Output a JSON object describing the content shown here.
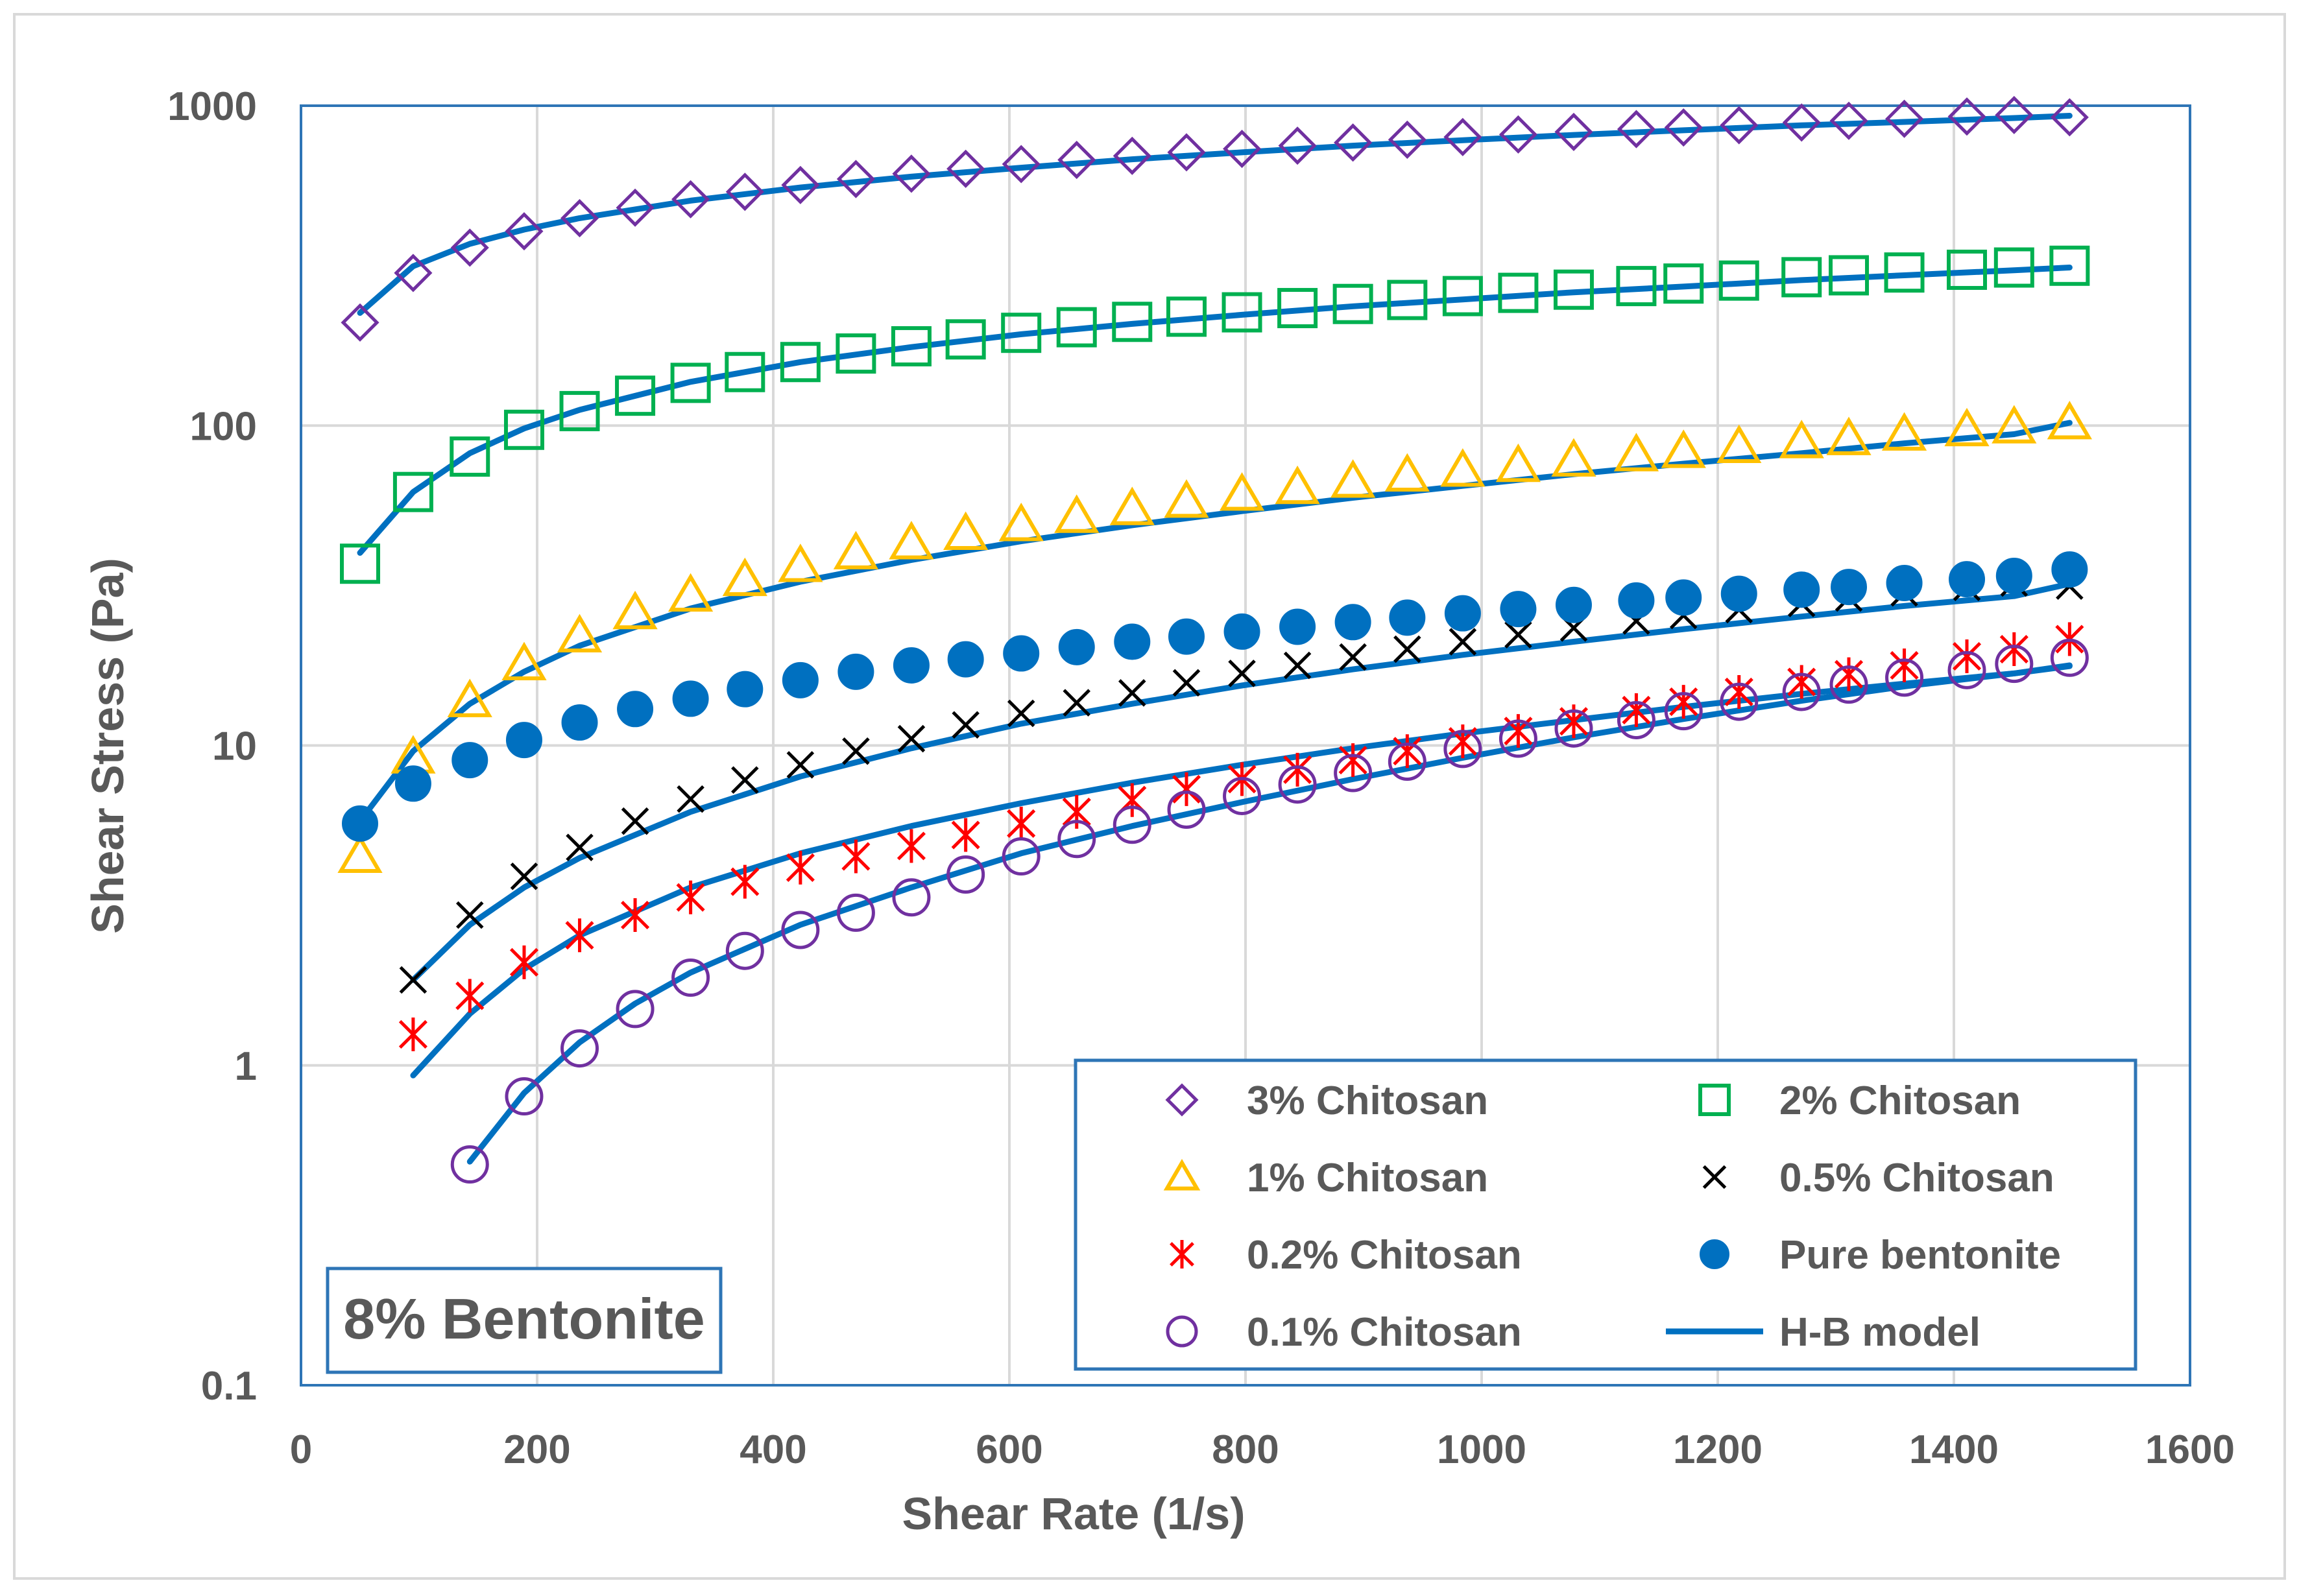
{
  "chart_data": {
    "type": "scatter",
    "xlabel": "Shear Rate (1/s)",
    "ylabel": "Shear Stress (Pa)",
    "xlim": [
      0,
      1600
    ],
    "ylim": [
      0.1,
      1000
    ],
    "yscale": "log",
    "x_ticks": [
      0,
      200,
      400,
      600,
      800,
      1000,
      1200,
      1400,
      1600
    ],
    "y_ticks": [
      0.1,
      1,
      10,
      100,
      1000
    ],
    "x_tick_labels": [
      "0",
      "200",
      "400",
      "600",
      "800",
      "1000",
      "1200",
      "1400",
      "1600"
    ],
    "y_tick_labels": [
      "0.1",
      "1",
      "10",
      "100",
      "1000"
    ],
    "grid": true,
    "legend_position": "bottom-right",
    "annotation": "8% Bentonite",
    "colors": {
      "purple": "#7030A0",
      "green": "#00B050",
      "yellow": "#FFC000",
      "black": "#000000",
      "red": "#FF0000",
      "blue": "#0070C0",
      "axis_text": "#595959",
      "grid": "#D9D9D9",
      "frame": "#2E75B6"
    },
    "series": [
      {
        "name": "3% Chitosan",
        "marker": "diamond-open",
        "color": "#7030A0",
        "x": [
          50,
          95,
          143,
          189,
          236,
          283,
          330,
          376,
          423,
          470,
          517,
          563,
          610,
          657,
          704,
          750,
          797,
          844,
          891,
          937,
          984,
          1031,
          1078,
          1131,
          1171,
          1218,
          1271,
          1311,
          1358,
          1411,
          1451,
          1498
        ],
        "y": [
          210,
          300,
          360,
          405,
          445,
          480,
          510,
          538,
          565,
          590,
          613,
          635,
          657,
          677,
          697,
          715,
          733,
          750,
          767,
          783,
          798,
          813,
          828,
          845,
          855,
          869,
          886,
          897,
          910,
          925,
          935,
          920
        ]
      },
      {
        "name": "2% Chitosan",
        "marker": "square-open",
        "color": "#00B050",
        "x": [
          50,
          95,
          143,
          189,
          236,
          283,
          330,
          376,
          423,
          470,
          517,
          563,
          610,
          657,
          704,
          750,
          797,
          844,
          891,
          937,
          984,
          1031,
          1078,
          1131,
          1171,
          1218,
          1271,
          1311,
          1358,
          1411,
          1451,
          1498
        ],
        "y": [
          37,
          62,
          80,
          97,
          111,
          124,
          136,
          147,
          158,
          168,
          177,
          186,
          195,
          203,
          211,
          219,
          226,
          233,
          240,
          247,
          254,
          260,
          266,
          273,
          278,
          284,
          291,
          295,
          301,
          307,
          312,
          316
        ]
      },
      {
        "name": "1% Chitosan",
        "marker": "triangle-open",
        "color": "#FFC000",
        "x": [
          50,
          95,
          143,
          189,
          236,
          283,
          330,
          376,
          423,
          470,
          517,
          563,
          610,
          657,
          704,
          750,
          797,
          844,
          891,
          937,
          984,
          1031,
          1078,
          1131,
          1171,
          1218,
          1271,
          1311,
          1358,
          1411,
          1451,
          1498
        ],
        "y": [
          4.5,
          9.2,
          13.8,
          18,
          22,
          26,
          29.5,
          33,
          36.5,
          40,
          43,
          46,
          49,
          52,
          55,
          58,
          61,
          64,
          67,
          70,
          72.5,
          75,
          78,
          81,
          83,
          86,
          89,
          91,
          94,
          97,
          99,
          102
        ]
      },
      {
        "name": "0.5% Chitosan",
        "marker": "x",
        "color": "#000000",
        "x": [
          95,
          143,
          189,
          236,
          283,
          330,
          376,
          423,
          470,
          517,
          563,
          610,
          657,
          704,
          750,
          797,
          844,
          891,
          937,
          984,
          1031,
          1078,
          1131,
          1171,
          1218,
          1271,
          1311,
          1358,
          1411,
          1451,
          1498
        ],
        "y": [
          1.85,
          2.95,
          3.9,
          4.8,
          5.8,
          6.8,
          7.8,
          8.7,
          9.6,
          10.5,
          11.6,
          12.6,
          13.6,
          14.6,
          15.7,
          16.8,
          17.8,
          18.9,
          20,
          21.1,
          22.2,
          23.3,
          24.5,
          25.5,
          26.6,
          27.8,
          28.9,
          30,
          31.2,
          32.2,
          31.5
        ]
      },
      {
        "name": "Pure bentonite",
        "marker": "circle-filled",
        "color": "#0070C0",
        "x": [
          50,
          95,
          143,
          189,
          236,
          283,
          330,
          376,
          423,
          470,
          517,
          563,
          610,
          657,
          704,
          750,
          797,
          844,
          891,
          937,
          984,
          1031,
          1078,
          1131,
          1171,
          1218,
          1271,
          1311,
          1358,
          1411,
          1451,
          1498
        ],
        "y": [
          5.7,
          7.6,
          9.0,
          10.4,
          11.8,
          13.0,
          14.0,
          15.0,
          16.0,
          17.0,
          17.8,
          18.6,
          19.4,
          20.3,
          21.1,
          21.9,
          22.7,
          23.5,
          24.3,
          25.1,
          25.9,
          26.7,
          27.5,
          28.4,
          29.0,
          29.8,
          30.7,
          31.3,
          32.2,
          33.1,
          33.9,
          35.5
        ]
      },
      {
        "name": "0.2% Chitosan",
        "marker": "asterisk",
        "color": "#FF0000",
        "x": [
          95,
          143,
          189,
          236,
          283,
          330,
          376,
          423,
          470,
          517,
          563,
          610,
          657,
          704,
          750,
          797,
          844,
          891,
          937,
          984,
          1031,
          1078,
          1131,
          1171,
          1218,
          1271,
          1311,
          1358,
          1411,
          1451,
          1498
        ],
        "y": [
          1.25,
          1.65,
          2.1,
          2.55,
          2.95,
          3.35,
          3.75,
          4.15,
          4.5,
          4.85,
          5.25,
          5.7,
          6.2,
          6.75,
          7.3,
          7.85,
          8.4,
          9.0,
          9.6,
          10.3,
          11.1,
          11.9,
          12.9,
          13.7,
          14.7,
          15.8,
          16.7,
          17.8,
          19.0,
          20.0,
          21.5
        ]
      },
      {
        "name": "0.1% Chitosan",
        "marker": "circle-open",
        "color": "#7030A0",
        "x": [
          143,
          189,
          236,
          283,
          330,
          376,
          423,
          470,
          517,
          563,
          610,
          657,
          704,
          750,
          797,
          844,
          891,
          937,
          984,
          1031,
          1078,
          1131,
          1171,
          1218,
          1271,
          1311,
          1358,
          1411,
          1451,
          1498
        ],
        "y": [
          0.49,
          0.8,
          1.13,
          1.5,
          1.88,
          2.28,
          2.65,
          3.0,
          3.35,
          3.95,
          4.5,
          5.1,
          5.65,
          6.3,
          6.95,
          7.55,
          8.2,
          8.9,
          9.75,
          10.5,
          11.3,
          12.0,
          12.8,
          13.7,
          14.7,
          15.5,
          16.3,
          17.2,
          18.0,
          18.8
        ]
      },
      {
        "name": "H-B model",
        "marker": "line",
        "color": "#0070C0",
        "curves": [
          {
            "x": [
              50,
              95,
              143,
              189,
              236,
              330,
              423,
              517,
              610,
              704,
              797,
              891,
              984,
              1078,
              1171,
              1271,
              1358,
              1451,
              1498
            ],
            "y": [
              225,
              315,
              370,
              410,
              445,
              505,
              555,
              600,
              640,
              680,
              715,
              750,
              780,
              810,
              838,
              868,
              890,
              915,
              930
            ]
          },
          {
            "x": [
              50,
              95,
              143,
              189,
              236,
              330,
              423,
              517,
              610,
              704,
              797,
              891,
              984,
              1078,
              1171,
              1271,
              1358,
              1451,
              1498
            ],
            "y": [
              40,
              62,
              82,
              98,
              112,
              137,
              158,
              176,
              193,
              208,
              222,
              236,
              248,
              261,
              272,
              285,
              295,
              306,
              312
            ]
          },
          {
            "x": [
              50,
              95,
              143,
              189,
              236,
              330,
              423,
              517,
              610,
              704,
              797,
              891,
              984,
              1078,
              1171,
              1271,
              1358,
              1451,
              1498
            ],
            "y": [
              5.8,
              9.6,
              13.5,
              17.0,
              20.5,
              26.8,
              32.5,
              38,
              43.5,
              48.8,
              54,
              59.5,
              64.8,
              70.5,
              76,
              82,
              88,
              94,
              102
            ]
          },
          {
            "x": [
              95,
              143,
              189,
              236,
              330,
              423,
              517,
              610,
              704,
              797,
              891,
              984,
              1078,
              1171,
              1271,
              1358,
              1451,
              1498
            ],
            "y": [
              1.85,
              2.75,
              3.6,
              4.45,
              6.2,
              8.0,
              9.8,
              11.7,
              13.5,
              15.4,
              17.3,
              19.2,
              21.1,
              23.1,
              25.3,
              27.3,
              29.3,
              32
            ]
          },
          {
            "x": [
              95,
              143,
              189,
              236,
              330,
              423,
              517,
              610,
              704,
              797,
              891,
              984,
              1078,
              1171,
              1271,
              1358,
              1451,
              1498
            ],
            "y": [
              0.93,
              1.45,
              2.0,
              2.55,
              3.6,
              4.6,
              5.6,
              6.6,
              7.65,
              8.7,
              9.8,
              10.9,
              12.0,
              13.2,
              14.5,
              15.6,
              16.8,
              17.7
            ]
          },
          {
            "x": [
              143,
              189,
              236,
              283,
              330,
              423,
              517,
              610,
              704,
              797,
              891,
              984,
              1078,
              1171,
              1271,
              1358,
              1451,
              1498
            ],
            "y": [
              0.5,
              0.82,
              1.18,
              1.56,
              1.95,
              2.75,
              3.6,
              4.6,
              5.6,
              6.65,
              7.85,
              9.15,
              10.6,
              12.1,
              13.8,
              15.3,
              16.8,
              17.8
            ]
          }
        ]
      }
    ],
    "legend_entries": [
      {
        "label": "3% Chitosan",
        "marker": "diamond-open",
        "color": "#7030A0"
      },
      {
        "label": "2% Chitosan",
        "marker": "square-open",
        "color": "#00B050"
      },
      {
        "label": "1% Chitosan",
        "marker": "triangle-open",
        "color": "#FFC000"
      },
      {
        "label": "0.5% Chitosan",
        "marker": "x",
        "color": "#000000"
      },
      {
        "label": "0.2% Chitosan",
        "marker": "asterisk",
        "color": "#FF0000"
      },
      {
        "label": "Pure bentonite",
        "marker": "circle-filled",
        "color": "#0070C0"
      },
      {
        "label": "0.1% Chitosan",
        "marker": "circle-open",
        "color": "#7030A0"
      },
      {
        "label": "H-B model",
        "marker": "line",
        "color": "#0070C0"
      }
    ]
  }
}
